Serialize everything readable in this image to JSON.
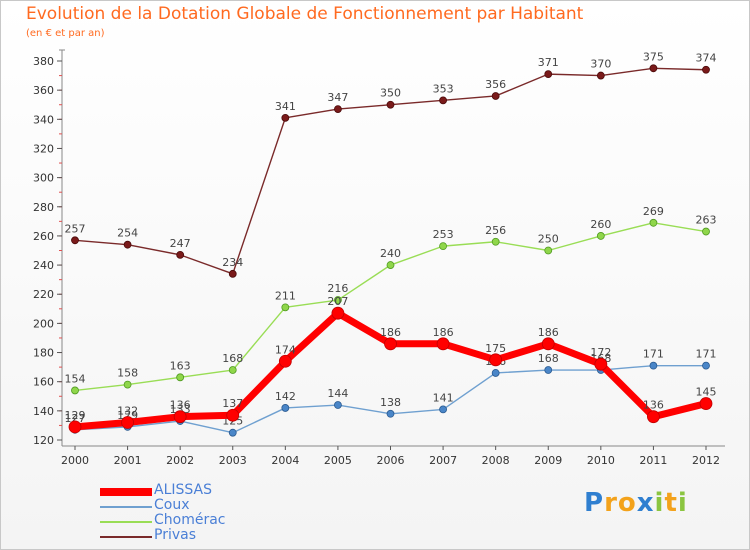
{
  "chart_data": {
    "type": "line",
    "title": "Evolution de la Dotation Globale de Fonctionnement par Habitant",
    "subtitle": "(en € et par an)",
    "xlabel": "",
    "ylabel": "",
    "x": [
      "2000",
      "2001",
      "2002",
      "2003",
      "2004",
      "2005",
      "2006",
      "2007",
      "2008",
      "2009",
      "2010",
      "2011",
      "2012"
    ],
    "ylim": [
      120,
      380
    ],
    "yticks": [
      120,
      140,
      160,
      180,
      200,
      220,
      240,
      260,
      280,
      300,
      320,
      340,
      360,
      380
    ],
    "grid": false,
    "legend_position": "bottom-left",
    "series": [
      {
        "name": "ALISSAS",
        "color": "#ff0000",
        "values": [
          129,
          132,
          136,
          137,
          174,
          207,
          186,
          186,
          175,
          186,
          172,
          136,
          145
        ]
      },
      {
        "name": "Coux",
        "color": "#6fa0d0",
        "values": [
          127,
          129,
          133,
          125,
          142,
          144,
          138,
          141,
          166,
          168,
          168,
          171,
          171
        ]
      },
      {
        "name": "Chomérac",
        "color": "#99dd55",
        "values": [
          154,
          158,
          163,
          168,
          211,
          216,
          240,
          253,
          256,
          250,
          260,
          269,
          263
        ]
      },
      {
        "name": "Privas",
        "color": "#7a2a2a",
        "values": [
          257,
          254,
          247,
          234,
          341,
          347,
          350,
          353,
          356,
          371,
          370,
          375,
          374
        ]
      }
    ]
  },
  "logo": {
    "text": "Proxiti",
    "letters": [
      "P",
      "r",
      "o",
      "x",
      "i",
      "t",
      "i"
    ],
    "colors": [
      "#2f7fd0",
      "#f3a21b",
      "#f3a21b",
      "#2f7fd0",
      "#8bc540",
      "#f3a21b",
      "#8bc540"
    ]
  }
}
